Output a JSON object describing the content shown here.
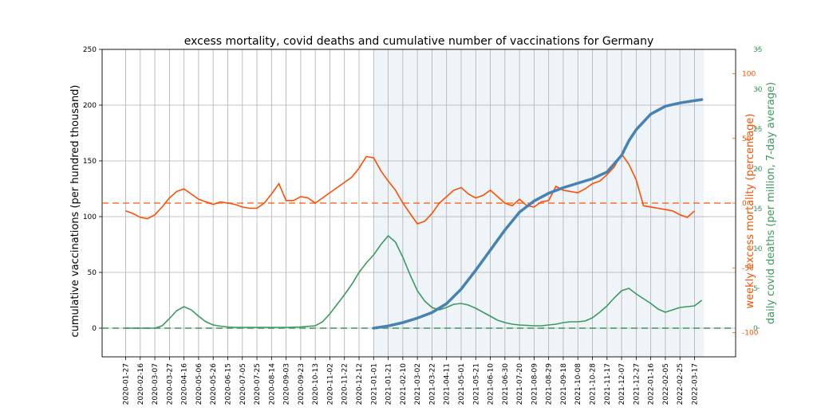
{
  "colors": {
    "vaccinations": "#4682b4",
    "excess_mortality": "#ff4f00",
    "covid_deaths": "#3c9a5f",
    "shade": "#dbe6f1"
  },
  "chart_data": {
    "type": "line",
    "title": "excess mortality, covid deaths and cumulative number of vaccinations for Germany",
    "axes": {
      "left": {
        "label": "cumulative vaccinations (per hundred thousand)",
        "range": [
          -25,
          250
        ],
        "ticks": [
          0,
          50,
          100,
          150,
          200,
          250
        ]
      },
      "right1": {
        "label": "weekly excess mortality (percentage)",
        "range": [
          -100,
          100
        ],
        "ticks": [
          -100,
          -50,
          0,
          50,
          100
        ]
      },
      "right2": {
        "label": "daily covid deaths (per million, 7-day average)",
        "range": [
          0,
          35
        ],
        "ticks": [
          0,
          5,
          10,
          15,
          20,
          25,
          30,
          35
        ]
      }
    },
    "x_ticks": [
      "2020-01-27",
      "2020-02-16",
      "2020-03-07",
      "2020-03-27",
      "2020-04-16",
      "2020-05-06",
      "2020-05-26",
      "2020-06-15",
      "2020-07-05",
      "2020-07-25",
      "2020-08-14",
      "2020-09-03",
      "2020-09-23",
      "2020-10-13",
      "2020-11-02",
      "2020-11-22",
      "2020-12-12",
      "2021-01-01",
      "2021-01-21",
      "2021-02-10",
      "2021-03-02",
      "2021-03-22",
      "2021-04-11",
      "2021-05-01",
      "2021-05-21",
      "2021-06-10",
      "2021-06-30",
      "2021-07-20",
      "2021-08-09",
      "2021-08-29",
      "2021-09-18",
      "2021-10-08",
      "2021-10-28",
      "2021-11-17",
      "2021-12-07",
      "2021-12-27",
      "2022-01-16",
      "2022-02-05",
      "2022-02-25",
      "2022-03-17"
    ],
    "grid": true,
    "shaded_period": [
      "2021-01-01",
      "2022-03-30"
    ],
    "reference_lines": [
      {
        "axis": "right1",
        "value": 0
      },
      {
        "axis": "right2",
        "value": 0
      }
    ],
    "series": [
      {
        "axis": "left",
        "x": [
          "2021-01-01",
          "2021-01-21",
          "2021-02-10",
          "2021-03-02",
          "2021-03-22",
          "2021-04-11",
          "2021-05-01",
          "2021-05-21",
          "2021-06-10",
          "2021-06-30",
          "2021-07-20",
          "2021-08-09",
          "2021-08-29",
          "2021-09-18",
          "2021-10-08",
          "2021-10-28",
          "2021-11-17",
          "2021-12-07",
          "2021-12-17",
          "2021-12-27",
          "2022-01-16",
          "2022-02-05",
          "2022-02-25",
          "2022-03-17",
          "2022-03-27"
        ],
        "y": [
          0,
          2,
          5,
          9,
          14,
          22,
          35,
          52,
          70,
          88,
          104,
          114,
          121,
          126,
          130,
          134,
          140,
          155,
          168,
          178,
          192,
          199,
          202,
          204,
          205
        ]
      },
      {
        "axis": "right1",
        "x": [
          "2020-01-27",
          "2020-02-06",
          "2020-02-16",
          "2020-02-26",
          "2020-03-07",
          "2020-03-17",
          "2020-03-27",
          "2020-04-06",
          "2020-04-16",
          "2020-04-26",
          "2020-05-06",
          "2020-05-16",
          "2020-05-26",
          "2020-06-05",
          "2020-06-15",
          "2020-06-25",
          "2020-07-05",
          "2020-07-15",
          "2020-07-25",
          "2020-08-04",
          "2020-08-14",
          "2020-08-24",
          "2020-09-03",
          "2020-09-13",
          "2020-09-23",
          "2020-10-03",
          "2020-10-13",
          "2020-10-23",
          "2020-11-02",
          "2020-11-12",
          "2020-11-22",
          "2020-12-02",
          "2020-12-12",
          "2020-12-22",
          "2021-01-01",
          "2021-01-11",
          "2021-01-21",
          "2021-01-31",
          "2021-02-10",
          "2021-02-20",
          "2021-03-02",
          "2021-03-12",
          "2021-03-22",
          "2021-04-01",
          "2021-04-11",
          "2021-04-21",
          "2021-05-01",
          "2021-05-11",
          "2021-05-21",
          "2021-05-31",
          "2021-06-10",
          "2021-06-20",
          "2021-06-30",
          "2021-07-10",
          "2021-07-20",
          "2021-07-30",
          "2021-08-09",
          "2021-08-19",
          "2021-08-29",
          "2021-09-08",
          "2021-09-18",
          "2021-09-28",
          "2021-10-08",
          "2021-10-18",
          "2021-10-28",
          "2021-11-07",
          "2021-11-17",
          "2021-11-27",
          "2021-12-07",
          "2021-12-17",
          "2021-12-27",
          "2022-01-06",
          "2022-01-16",
          "2022-01-26",
          "2022-02-05",
          "2022-02-15",
          "2022-02-25",
          "2022-03-07",
          "2022-03-17"
        ],
        "y": [
          -6,
          -8,
          -11,
          -12,
          -9,
          -3,
          4,
          9,
          11,
          7,
          3,
          1,
          -1,
          1,
          0,
          -1,
          -3,
          -4,
          -4,
          0,
          7,
          15,
          2,
          2,
          5,
          4,
          0,
          4,
          8,
          12,
          16,
          20,
          27,
          36,
          35,
          25,
          17,
          10,
          0,
          -8,
          -16,
          -14,
          -8,
          0,
          5,
          10,
          12,
          7,
          4,
          6,
          10,
          5,
          0,
          -2,
          3,
          -2,
          -3,
          1,
          2,
          13,
          10,
          9,
          8,
          11,
          15,
          17,
          22,
          28,
          38,
          30,
          18,
          -2,
          -3,
          -4,
          -5,
          -6,
          -9,
          -11,
          -6
        ],
        "points": [
          [
            0,
            -6
          ],
          [
            1,
            -8
          ],
          [
            2,
            -11
          ],
          [
            3,
            -12
          ],
          [
            4,
            -9
          ],
          [
            5,
            -3
          ],
          [
            6,
            4
          ],
          [
            7,
            9
          ],
          [
            8,
            11
          ],
          [
            9,
            7
          ],
          [
            10,
            3
          ],
          [
            11,
            1
          ],
          [
            12,
            -1
          ],
          [
            13,
            1
          ],
          [
            14,
            0
          ],
          [
            15,
            -1
          ],
          [
            16,
            -3
          ],
          [
            17,
            -4
          ],
          [
            18,
            -4
          ],
          [
            19,
            0
          ],
          [
            20,
            7
          ],
          [
            21,
            15
          ],
          [
            22,
            2
          ],
          [
            23,
            2
          ],
          [
            24,
            5
          ],
          [
            25,
            4
          ],
          [
            26,
            0
          ],
          [
            27,
            4
          ],
          [
            28,
            8
          ],
          [
            29,
            12
          ],
          [
            30,
            16
          ],
          [
            31,
            20
          ],
          [
            32,
            27
          ],
          [
            33,
            36
          ],
          [
            34,
            35
          ],
          [
            35,
            25
          ],
          [
            36,
            17
          ],
          [
            37,
            10
          ],
          [
            38,
            0
          ],
          [
            39,
            -8
          ],
          [
            40,
            -16
          ],
          [
            41,
            -14
          ],
          [
            42,
            -8
          ],
          [
            43,
            0
          ],
          [
            44,
            5
          ],
          [
            45,
            10
          ],
          [
            46,
            12
          ],
          [
            47,
            7
          ],
          [
            48,
            4
          ],
          [
            49,
            6
          ],
          [
            50,
            10
          ],
          [
            51,
            5
          ],
          [
            52,
            0
          ],
          [
            53,
            -2
          ],
          [
            54,
            3
          ],
          [
            55,
            -2
          ],
          [
            56,
            -3
          ],
          [
            57,
            1
          ],
          [
            58,
            2
          ],
          [
            59,
            13
          ],
          [
            60,
            10
          ],
          [
            61,
            9
          ],
          [
            62,
            8
          ],
          [
            63,
            11
          ],
          [
            64,
            15
          ],
          [
            65,
            17
          ],
          [
            66,
            22
          ],
          [
            67,
            28
          ],
          [
            68,
            38
          ],
          [
            69,
            30
          ],
          [
            70,
            18
          ],
          [
            71,
            -2
          ],
          [
            72,
            -3
          ],
          [
            73,
            -4
          ],
          [
            74,
            -5
          ],
          [
            75,
            -6
          ],
          [
            76,
            -9
          ],
          [
            77,
            -11
          ],
          [
            78,
            -6
          ]
        ]
      },
      {
        "axis": "right2",
        "x": [
          "2020-01-27",
          "2020-02-16",
          "2020-03-07",
          "2020-03-17",
          "2020-03-27",
          "2020-04-06",
          "2020-04-16",
          "2020-04-26",
          "2020-05-06",
          "2020-05-16",
          "2020-05-26",
          "2020-06-05",
          "2020-06-15",
          "2020-06-25",
          "2020-07-05",
          "2020-07-25",
          "2020-08-14",
          "2020-09-03",
          "2020-09-23",
          "2020-10-13",
          "2020-10-23",
          "2020-11-02",
          "2020-11-12",
          "2020-11-22",
          "2020-12-02",
          "2020-12-12",
          "2020-12-22",
          "2021-01-01",
          "2021-01-11",
          "2021-01-21",
          "2021-01-31",
          "2021-02-10",
          "2021-02-20",
          "2021-03-02",
          "2021-03-12",
          "2021-03-22",
          "2021-04-01",
          "2021-04-11",
          "2021-04-21",
          "2021-05-01",
          "2021-05-11",
          "2021-05-21",
          "2021-05-31",
          "2021-06-10",
          "2021-06-20",
          "2021-06-30",
          "2021-07-10",
          "2021-07-20",
          "2021-07-30",
          "2021-08-09",
          "2021-08-19",
          "2021-08-29",
          "2021-09-08",
          "2021-09-18",
          "2021-09-28",
          "2021-10-08",
          "2021-10-18",
          "2021-10-28",
          "2021-11-07",
          "2021-11-17",
          "2021-11-27",
          "2021-12-07",
          "2021-12-17",
          "2021-12-27",
          "2022-01-06",
          "2022-01-16",
          "2022-01-26",
          "2022-02-05",
          "2022-02-15",
          "2022-02-25",
          "2022-03-07",
          "2022-03-17",
          "2022-03-27"
        ],
        "y": [
          0,
          0,
          0,
          0.3,
          1.2,
          2.2,
          2.7,
          2.3,
          1.5,
          0.8,
          0.4,
          0.25,
          0.15,
          0.1,
          0.1,
          0.1,
          0.1,
          0.1,
          0.15,
          0.3,
          0.8,
          1.8,
          3.0,
          4.2,
          5.5,
          7,
          8.2,
          9.2,
          10.5,
          11.6,
          10.8,
          8.9,
          6.7,
          4.7,
          3.4,
          2.6,
          2.3,
          2.6,
          3.0,
          3.1,
          2.9,
          2.5,
          2.0,
          1.5,
          1.0,
          0.7,
          0.5,
          0.4,
          0.35,
          0.3,
          0.3,
          0.4,
          0.5,
          0.7,
          0.8,
          0.8,
          0.9,
          1.3,
          2.0,
          2.8,
          3.8,
          4.7,
          5.0,
          4.3,
          3.7,
          3.1,
          2.4,
          2.0,
          2.3,
          2.6,
          2.7,
          2.8,
          3.5
        ],
        "points": [
          [
            0,
            0
          ],
          [
            2,
            0
          ],
          [
            4,
            0
          ],
          [
            5,
            0.3
          ],
          [
            6,
            1.2
          ],
          [
            7,
            2.2
          ],
          [
            8,
            2.7
          ],
          [
            9,
            2.3
          ],
          [
            10,
            1.5
          ],
          [
            11,
            0.8
          ],
          [
            12,
            0.4
          ],
          [
            13,
            0.25
          ],
          [
            14,
            0.15
          ],
          [
            15,
            0.1
          ],
          [
            16,
            0.1
          ],
          [
            18,
            0.1
          ],
          [
            20,
            0.1
          ],
          [
            22,
            0.1
          ],
          [
            24,
            0.15
          ],
          [
            26,
            0.3
          ],
          [
            27,
            0.8
          ],
          [
            28,
            1.8
          ],
          [
            29,
            3.0
          ],
          [
            30,
            4.2
          ],
          [
            31,
            5.5
          ],
          [
            32,
            7
          ],
          [
            33,
            8.2
          ],
          [
            34,
            9.2
          ],
          [
            35,
            10.5
          ],
          [
            36,
            11.6
          ],
          [
            37,
            10.8
          ],
          [
            38,
            8.9
          ],
          [
            39,
            6.7
          ],
          [
            40,
            4.7
          ],
          [
            41,
            3.4
          ],
          [
            42,
            2.6
          ],
          [
            43,
            2.3
          ],
          [
            44,
            2.6
          ],
          [
            45,
            3.0
          ],
          [
            46,
            3.1
          ],
          [
            47,
            2.9
          ],
          [
            48,
            2.5
          ],
          [
            49,
            2.0
          ],
          [
            50,
            1.5
          ],
          [
            51,
            1.0
          ],
          [
            52,
            0.7
          ],
          [
            53,
            0.5
          ],
          [
            54,
            0.4
          ],
          [
            55,
            0.35
          ],
          [
            56,
            0.3
          ],
          [
            57,
            0.3
          ],
          [
            58,
            0.4
          ],
          [
            59,
            0.5
          ],
          [
            60,
            0.7
          ],
          [
            61,
            0.8
          ],
          [
            62,
            0.8
          ],
          [
            63,
            0.9
          ],
          [
            64,
            1.3
          ],
          [
            65,
            2.0
          ],
          [
            66,
            2.8
          ],
          [
            67,
            3.8
          ],
          [
            68,
            4.7
          ],
          [
            69,
            5.0
          ],
          [
            70,
            4.3
          ],
          [
            71,
            3.7
          ],
          [
            72,
            3.1
          ],
          [
            73,
            2.4
          ],
          [
            74,
            2.0
          ],
          [
            75,
            2.3
          ],
          [
            76,
            2.6
          ],
          [
            77,
            2.7
          ],
          [
            78,
            2.8
          ],
          [
            79,
            3.5
          ]
        ]
      }
    ]
  }
}
